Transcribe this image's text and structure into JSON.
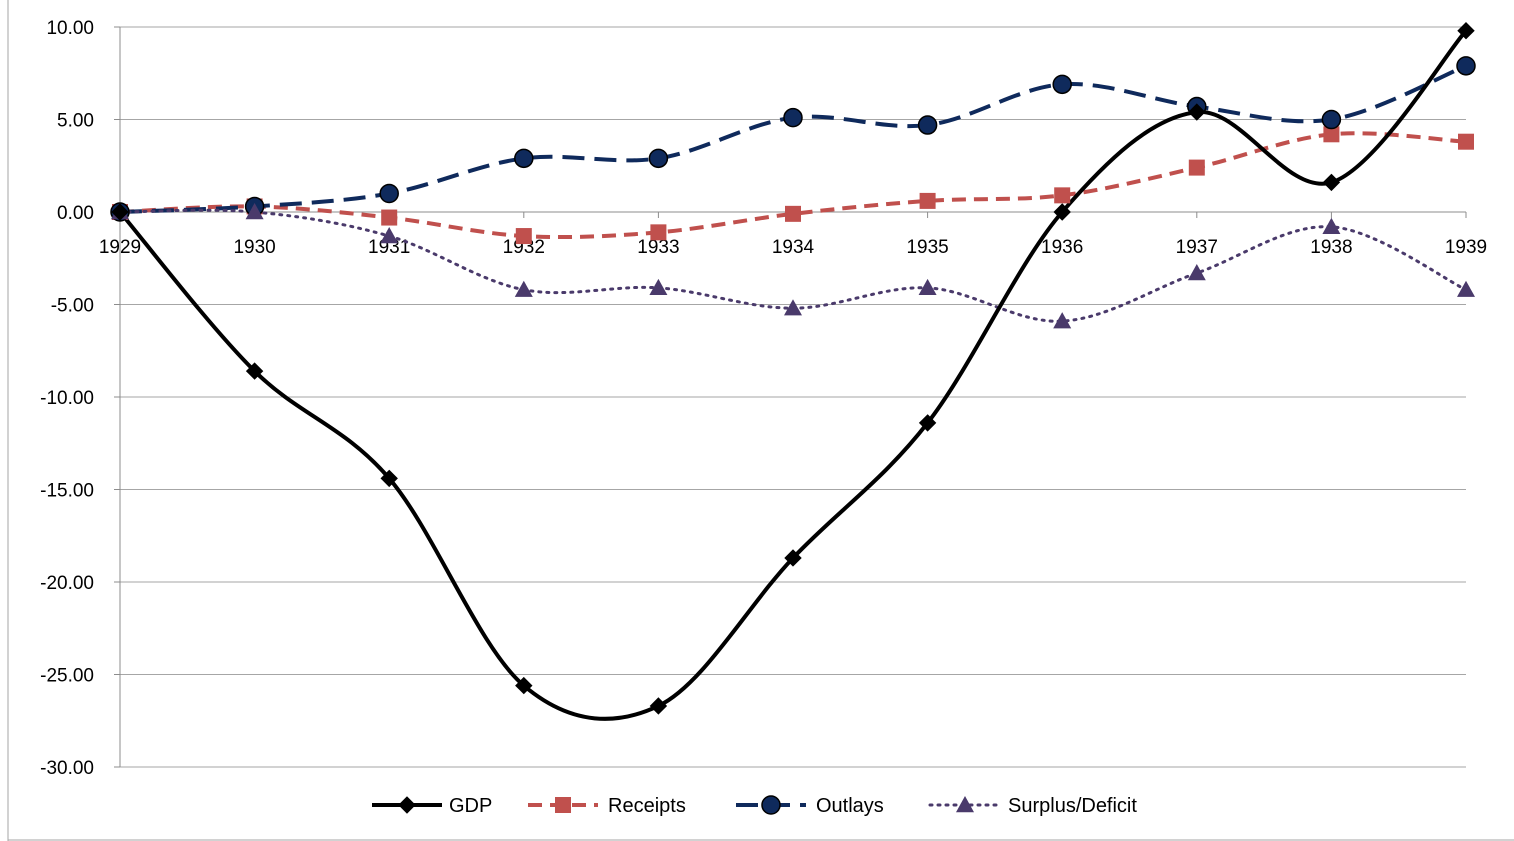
{
  "chart_data": {
    "type": "line",
    "title": "",
    "xlabel": "",
    "ylabel": "",
    "x": [
      "1929",
      "1930",
      "1931",
      "1932",
      "1933",
      "1934",
      "1935",
      "1936",
      "1937",
      "1938",
      "1939"
    ],
    "ylim": [
      -30,
      10
    ],
    "yticks": [
      "10.00",
      "5.00",
      "0.00",
      "-5.00",
      "-10.00",
      "-15.00",
      "-20.00",
      "-25.00",
      "-30.00"
    ],
    "grid": true,
    "smooth": true,
    "legend_position": "bottom",
    "series": [
      {
        "name": "GDP",
        "color": "#000000",
        "dash": "solid",
        "marker": "diamond",
        "values": [
          0.0,
          -8.6,
          -14.4,
          -25.6,
          -26.7,
          -18.7,
          -11.4,
          0.0,
          5.4,
          1.6,
          9.8
        ]
      },
      {
        "name": "Receipts",
        "color": "#c0504d",
        "dash": "dash",
        "marker": "square",
        "values": [
          0.0,
          0.3,
          -0.3,
          -1.3,
          -1.1,
          -0.1,
          0.6,
          0.9,
          2.4,
          4.2,
          3.8
        ]
      },
      {
        "name": "Outlays",
        "color": "#0f2a5c",
        "dash": "longdash",
        "marker": "circle",
        "values": [
          0.0,
          0.3,
          1.0,
          2.9,
          2.9,
          5.1,
          4.7,
          6.9,
          5.7,
          5.0,
          7.9
        ]
      },
      {
        "name": "Surplus/Deficit",
        "color": "#4a3a6b",
        "dash": "dot",
        "marker": "triangle",
        "values": [
          0.0,
          0.0,
          -1.3,
          -4.2,
          -4.1,
          -5.2,
          -4.1,
          -5.9,
          -3.3,
          -0.8,
          -4.2
        ]
      }
    ]
  }
}
